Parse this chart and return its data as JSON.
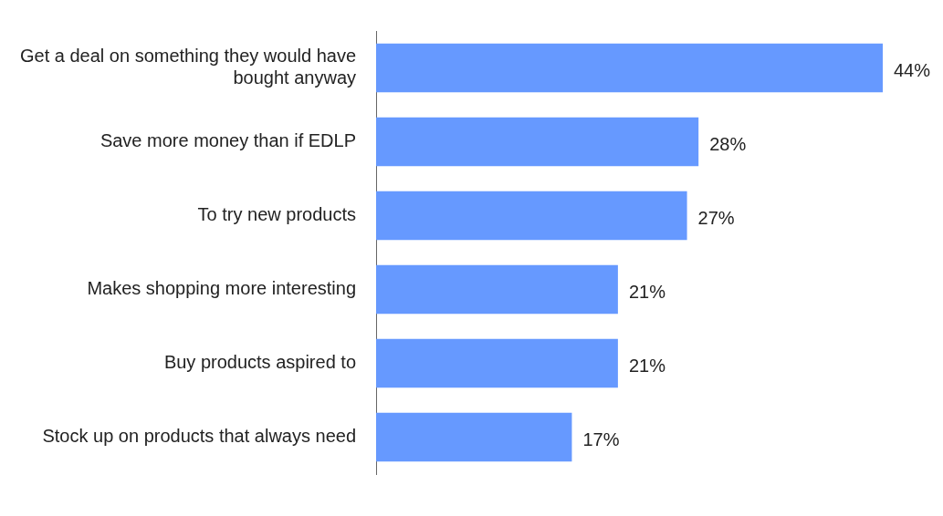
{
  "chart_data": {
    "type": "bar",
    "orientation": "horizontal",
    "categories": [
      "Get a deal on something they would have bought anyway",
      "Save more money than if EDLP",
      "To try new products",
      "Makes shopping more interesting",
      "Buy products aspired to",
      "Stock up on products that always need"
    ],
    "values": [
      44,
      28,
      27,
      21,
      21,
      17
    ],
    "value_labels": [
      "44%",
      "28%",
      "27%",
      "21%",
      "21%",
      "17%"
    ],
    "color": "#6699ff",
    "xlim": [
      0,
      44
    ],
    "tick_labels": "y"
  }
}
